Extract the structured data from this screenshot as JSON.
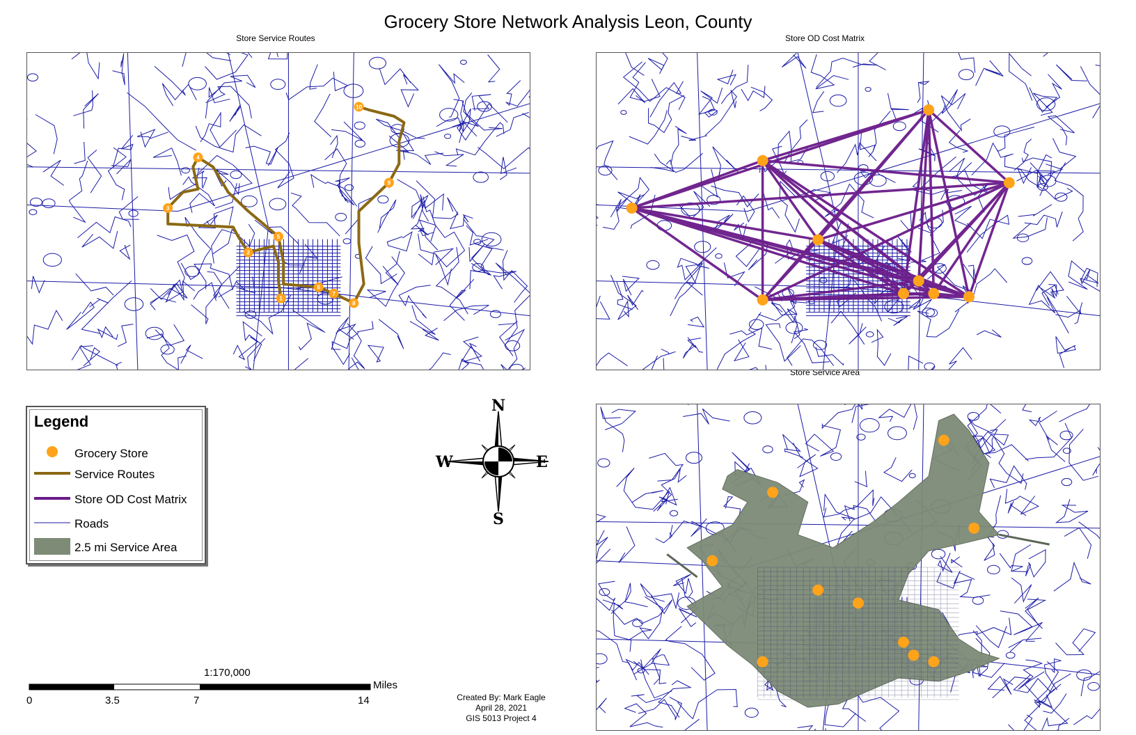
{
  "title": "Grocery Store Network Analysis Leon, County",
  "panels": {
    "routes": {
      "title": "Store Service Routes"
    },
    "od": {
      "title": "Store OD Cost Matrix"
    },
    "area": {
      "title": "Store Service Area"
    }
  },
  "route_stop_numbers": [
    "1",
    "2",
    "3",
    "4",
    "5",
    "6",
    "7",
    "8",
    "9",
    "10"
  ],
  "legend": {
    "title": "Legend",
    "items": [
      {
        "label": "Grocery Store",
        "symbol": "orange-dot"
      },
      {
        "label": "Service Routes",
        "symbol": "brown-line"
      },
      {
        "label": "Store OD Cost Matrix",
        "symbol": "purple-line"
      },
      {
        "label": "Roads",
        "symbol": "blue-thin-line"
      },
      {
        "label": "2.5 mi Service Area",
        "symbol": "green-fill"
      }
    ]
  },
  "compass": {
    "n": "N",
    "s": "S",
    "e": "E",
    "w": "W"
  },
  "scale": {
    "ratio": "1:170,000",
    "unit": "Miles",
    "ticks": [
      "0",
      "3.5",
      "7",
      "14"
    ]
  },
  "credits": {
    "line1": "Created By: Mark Eagle",
    "line2": "April 28, 2021",
    "line3": "GIS 5013 Project 4"
  },
  "colors": {
    "roads": "#1a1aa6",
    "store": "#ffa31a",
    "route": "#8b6914",
    "od": "#6a1b8a",
    "service_area": "#7d8b77"
  }
}
